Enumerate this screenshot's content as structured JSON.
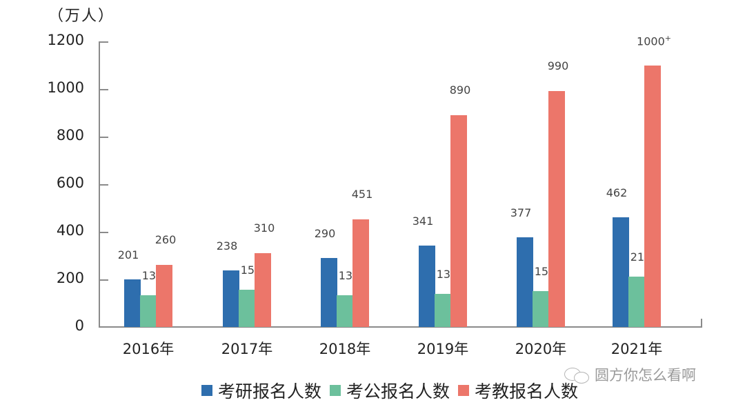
{
  "chart_data": {
    "type": "bar",
    "title": "",
    "unit_label": "（万人）",
    "xlabel": "",
    "ylabel": "（万人）",
    "ylim": [
      0,
      1200
    ],
    "yticks": [
      0,
      200,
      400,
      600,
      800,
      1000,
      1200
    ],
    "grid": false,
    "legend_position": "bottom",
    "categories": [
      "2016年",
      "2017年",
      "2018年",
      "2019年",
      "2020年",
      "2021年"
    ],
    "series": [
      {
        "name": "考研报名人数",
        "color": "#2e6eae",
        "values": [
          201,
          238,
          290,
          341,
          377,
          462
        ],
        "labels": [
          "201",
          "238",
          "290",
          "341",
          "377",
          "462"
        ]
      },
      {
        "name": "考公报名人数",
        "color": "#6cc09c",
        "values": [
          133,
          156,
          133,
          139,
          151,
          212
        ],
        "labels": [
          "133",
          "156",
          "133",
          "139",
          "151",
          "212"
        ]
      },
      {
        "name": "考教报名人数",
        "color": "#ec766a",
        "values": [
          260,
          310,
          451,
          890,
          990,
          1100
        ],
        "labels": [
          "260",
          "310",
          "451",
          "890",
          "990",
          "1000+"
        ]
      }
    ],
    "annotations": [
      "2021年考教报名人数标注为 1000+"
    ]
  },
  "watermark": {
    "text": "圆方你怎么看啊",
    "icon": "wechat-icon"
  }
}
